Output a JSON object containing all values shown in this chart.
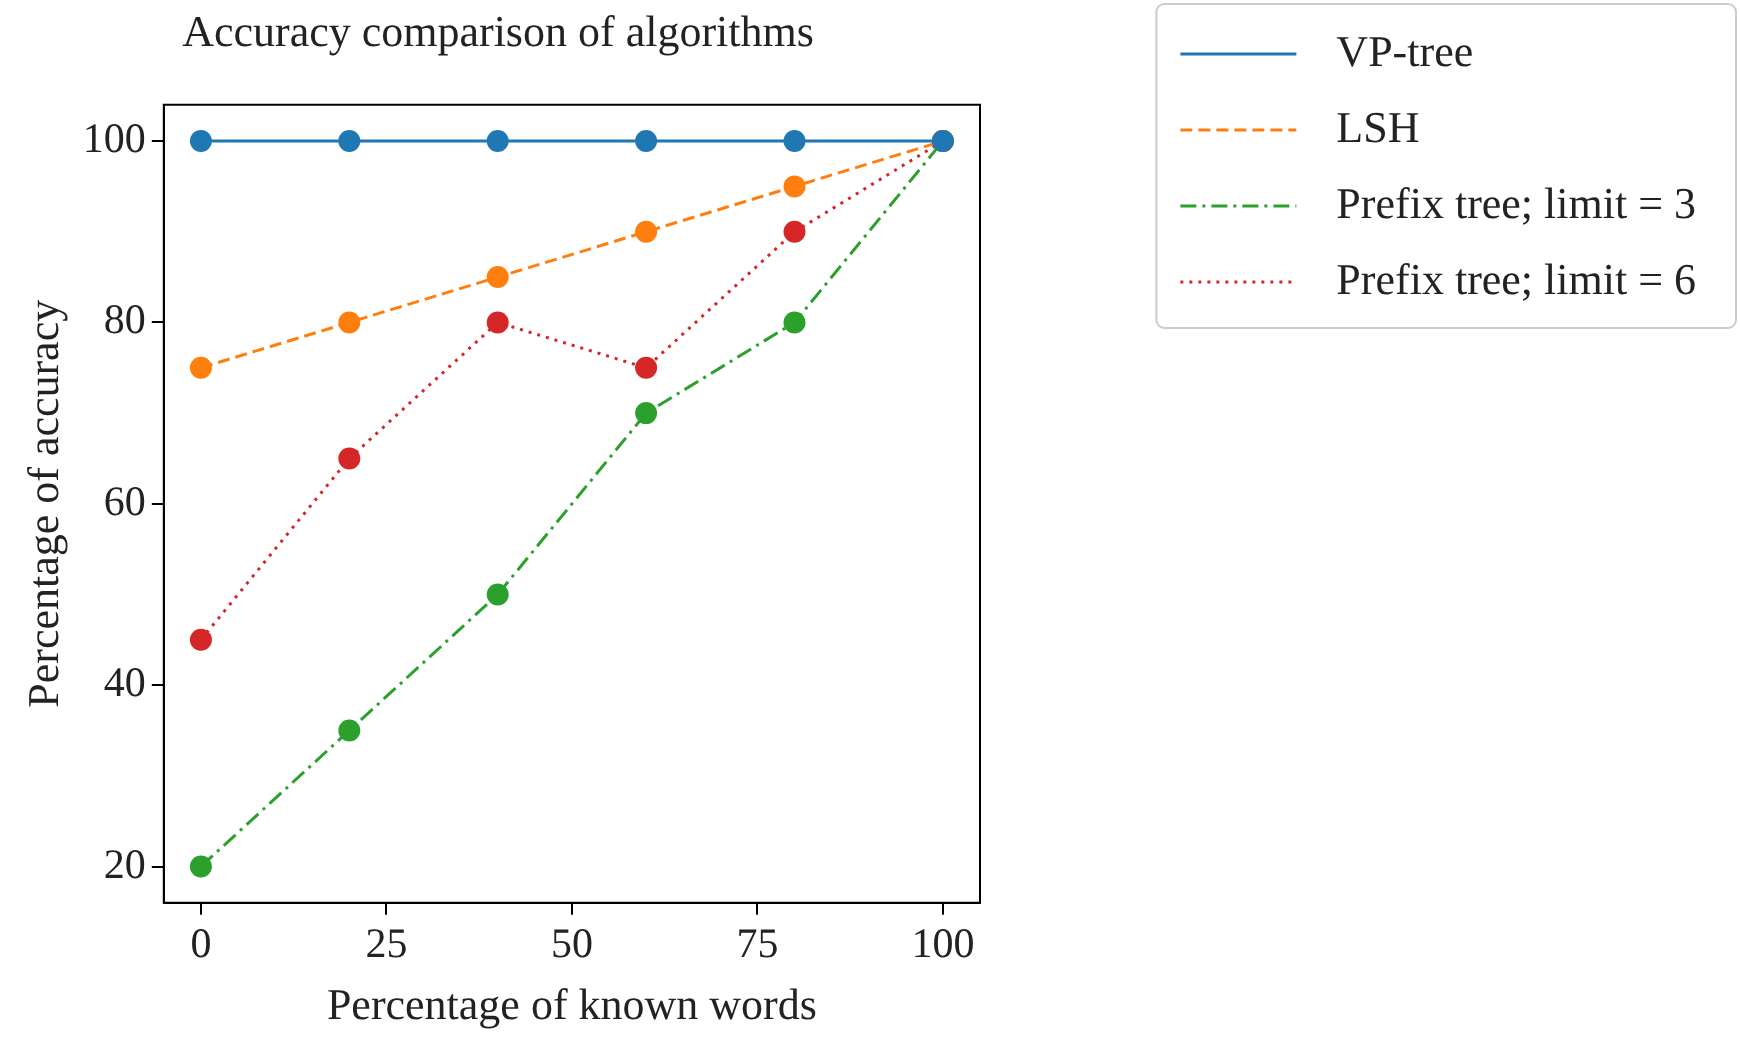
{
  "chart_data": {
    "type": "line",
    "title": "Accuracy comparison of algorithms",
    "xlabel": "Percentage of known words",
    "ylabel": "Percentage of accuracy",
    "x": [
      0,
      20,
      40,
      60,
      80,
      100
    ],
    "series": [
      {
        "name": "VP-tree",
        "color": "#1f77b4",
        "line_style": "solid",
        "values": [
          100,
          100,
          100,
          100,
          100,
          100
        ]
      },
      {
        "name": "LSH",
        "color": "#ff7f0e",
        "line_style": "dashed",
        "values": [
          75,
          80,
          85,
          90,
          95,
          100
        ]
      },
      {
        "name": "Prefix tree; limit = 3",
        "color": "#2ca02c",
        "line_style": "dashdot",
        "values": [
          20,
          35,
          50,
          70,
          80,
          100
        ]
      },
      {
        "name": "Prefix tree; limit = 6",
        "color": "#d62728",
        "line_style": "dotted",
        "values": [
          45,
          65,
          80,
          75,
          90,
          100
        ]
      }
    ],
    "xlim": [
      -5,
      105
    ],
    "xticks": [
      0,
      25,
      50,
      75,
      100
    ],
    "ylim": [
      16,
      104
    ],
    "yticks": [
      20,
      40,
      60,
      80,
      100
    ],
    "marker": "circle",
    "legend": "top right",
    "grid": false
  }
}
